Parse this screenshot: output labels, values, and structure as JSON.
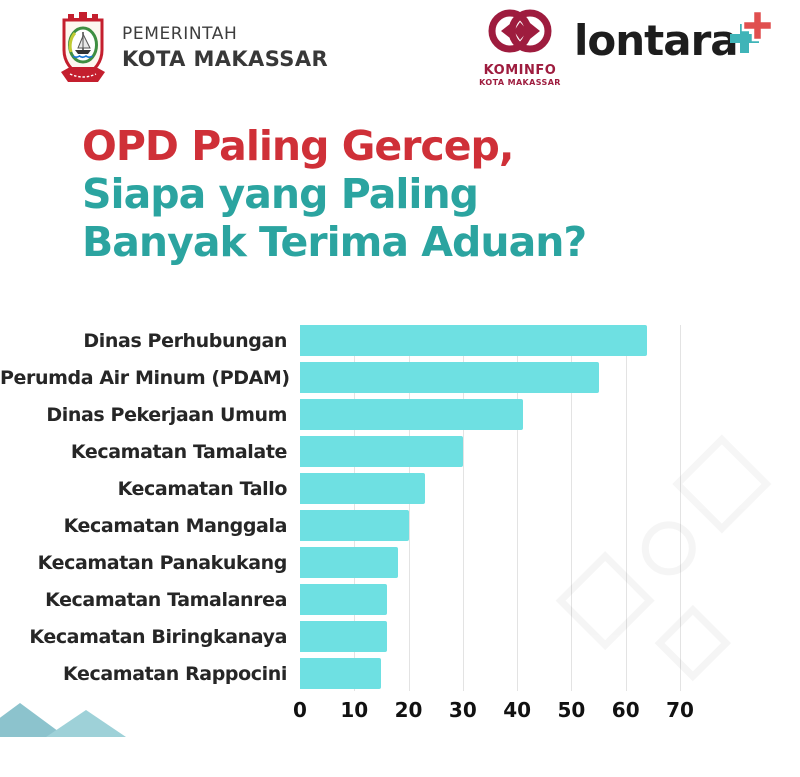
{
  "header": {
    "government": {
      "line1": "PEMERINTAH",
      "line2": "KOTA MAKASSAR",
      "logo": "makassar-city-crest"
    },
    "kominfo": {
      "name": "KOMINFO",
      "subtitle": "KOTA MAKASSAR",
      "logo": "kominfo-logo",
      "color": "#9e1c3e"
    },
    "lontara": {
      "wordmark": "lontara",
      "logo": "lontara-plus-icon",
      "plus_teal": "#3fb4b8",
      "plus_red": "#e04f4f"
    }
  },
  "title": {
    "line1": "OPD Paling Gercep,",
    "line2": "Siapa yang Paling",
    "line3": "Banyak Terima Aduan?",
    "line1_color": "#cf3038",
    "rest_color": "#2ba4a0"
  },
  "chart_data": {
    "type": "bar",
    "orientation": "horizontal",
    "title": "OPD Paling Gercep, Siapa yang Paling Banyak Terima Aduan?",
    "categories": [
      "Dinas Perhubungan",
      "Perumda Air Minum (PDAM)",
      "Dinas Pekerjaan Umum",
      "Kecamatan Tamalate",
      "Kecamatan Tallo",
      "Kecamatan Manggala",
      "Kecamatan Panakukang",
      "Kecamatan Tamalanrea",
      "Kecamatan Biringkanaya",
      "Kecamatan Rappocini"
    ],
    "values": [
      64,
      55,
      41,
      30,
      23,
      20,
      18,
      16,
      16,
      15
    ],
    "xlabel": "",
    "ylabel": "",
    "xlim": [
      0,
      70
    ],
    "xticks": [
      0,
      10,
      20,
      30,
      40,
      50,
      60,
      70
    ],
    "bar_color": "#6ee0e2",
    "grid": true,
    "gridline_color": "#e3e3e3",
    "label_color": "#262626",
    "tick_color": "#111111",
    "legend": false
  }
}
